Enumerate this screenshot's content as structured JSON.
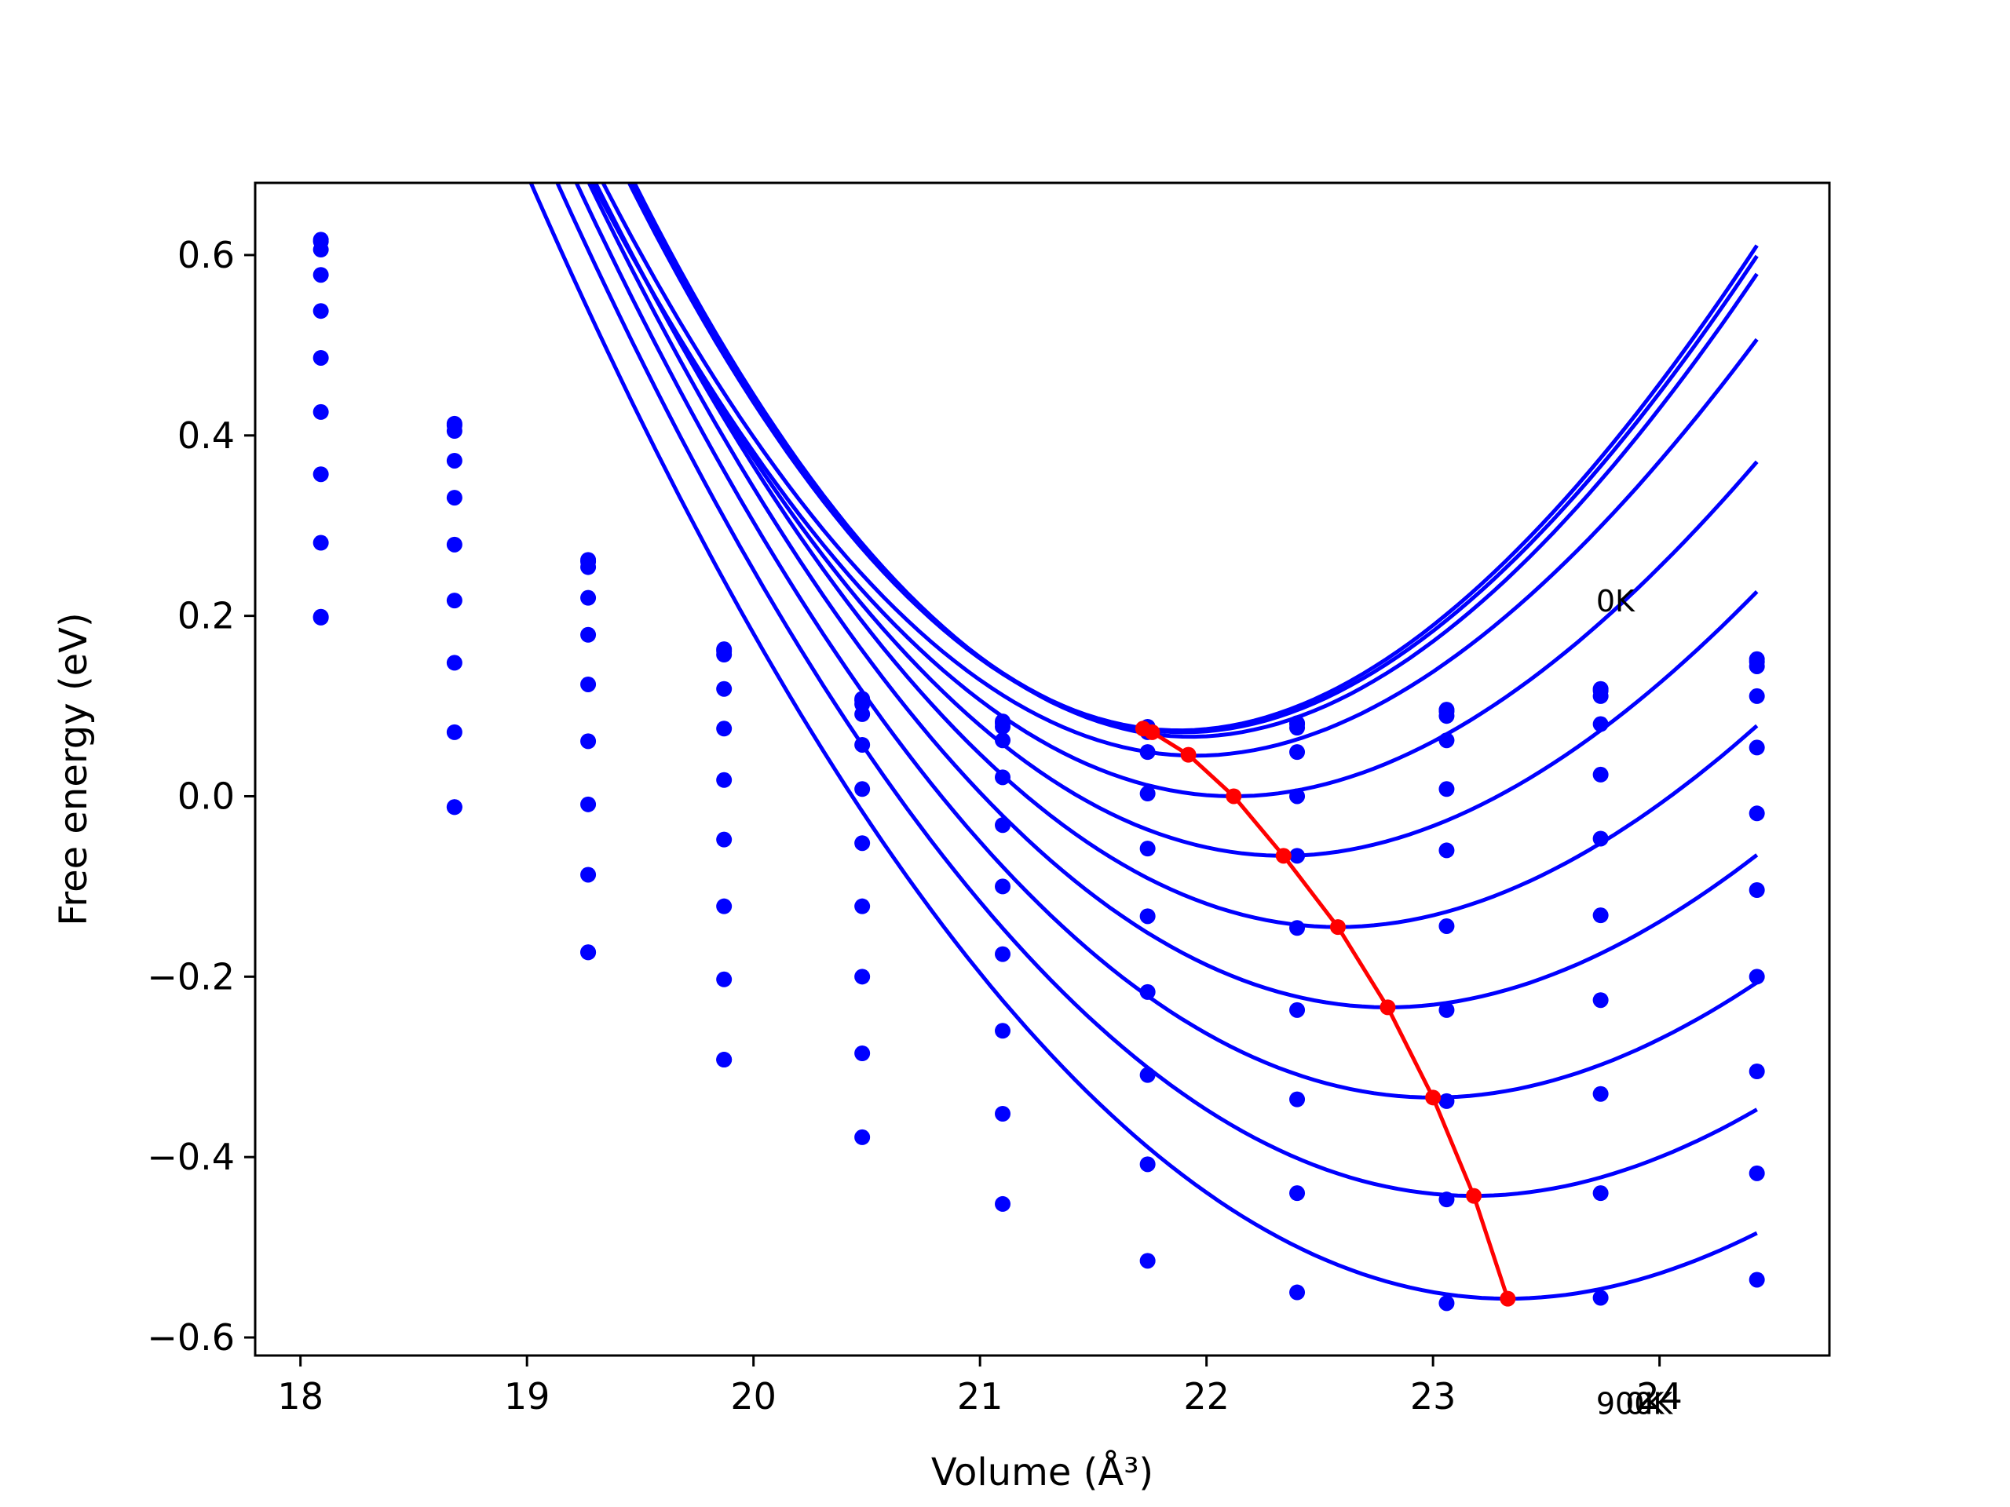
{
  "chart_data": {
    "type": "line",
    "title": "",
    "xlabel": "Volume (Å³)",
    "ylabel": "Free energy (eV)",
    "xlim": [
      17.8,
      24.75
    ],
    "ylim": [
      -0.62,
      0.68
    ],
    "xticks": [
      18,
      19,
      20,
      21,
      22,
      23,
      24
    ],
    "yticks": [
      -0.6,
      -0.4,
      -0.2,
      0.0,
      0.2,
      0.4,
      0.6
    ],
    "ytick_labels": [
      "−0.6",
      "−0.4",
      "−0.2",
      "0.0",
      "0.2",
      "0.4",
      "0.6"
    ],
    "grid": false,
    "annotations": [
      {
        "text": "0K",
        "x": 23.72,
        "y": 0.205
      },
      {
        "text": "900K",
        "x": 23.72,
        "y": -0.685
      },
      {
        "text": "0K",
        "x": 23.85,
        "y": -0.685
      }
    ],
    "volumes": [
      18.09,
      18.68,
      19.27,
      19.87,
      20.48,
      21.1,
      21.74,
      22.4,
      23.06,
      23.74,
      24.43
    ],
    "series": [
      {
        "color": "#0000ff",
        "values": [
          0.617,
          0.413,
          0.262,
          0.163,
          0.108,
          0.083,
          0.077,
          0.081,
          0.096,
          0.119,
          0.152
        ],
        "fit": {
          "a": 0.1029,
          "v0": 21.88,
          "e0": 0.073
        }
      },
      {
        "color": "#0000ff",
        "values": [
          0.615,
          0.411,
          0.26,
          0.161,
          0.106,
          0.081,
          0.075,
          0.08,
          0.094,
          0.117,
          0.149
        ],
        "fit": {
          "a": 0.1025,
          "v0": 21.9,
          "e0": 0.071
        }
      },
      {
        "color": "#0000ff",
        "values": [
          0.606,
          0.405,
          0.254,
          0.157,
          0.102,
          0.077,
          0.071,
          0.076,
          0.089,
          0.111,
          0.144
        ],
        "fit": {
          "a": 0.1018,
          "v0": 21.93,
          "e0": 0.066
        }
      },
      {
        "color": "#0000ff",
        "values": [
          0.578,
          0.372,
          0.22,
          0.119,
          0.091,
          0.062,
          0.049,
          0.049,
          0.062,
          0.08,
          0.111
        ],
        "fit": {
          "a": 0.0929,
          "v0": 21.95,
          "e0": 0.045
        }
      },
      {
        "color": "#0000ff",
        "values": [
          0.538,
          0.331,
          0.179,
          0.075,
          0.057,
          0.021,
          0.003,
          0.0,
          0.008,
          0.024,
          0.054
        ],
        "fit": {
          "a": 0.0849,
          "v0": 22.12,
          "e0": 0.0
        }
      },
      {
        "color": "#0000ff",
        "values": [
          0.486,
          0.279,
          0.124,
          0.018,
          0.008,
          -0.032,
          -0.058,
          -0.066,
          -0.06,
          -0.047,
          -0.019
        ],
        "fit": {
          "a": 0.0805,
          "v0": 22.34,
          "e0": -0.066
        }
      },
      {
        "color": "#0000ff",
        "values": [
          0.426,
          0.217,
          0.061,
          -0.048,
          -0.052,
          -0.1,
          -0.133,
          -0.146,
          -0.144,
          -0.132,
          -0.104
        ],
        "fit": {
          "a": 0.0768,
          "v0": 22.58,
          "e0": -0.145
        }
      },
      {
        "color": "#0000ff",
        "values": [
          0.357,
          0.148,
          -0.009,
          -0.122,
          -0.122,
          -0.175,
          -0.217,
          -0.237,
          -0.237,
          -0.226,
          -0.2
        ],
        "fit": {
          "a": 0.0735,
          "v0": 22.8,
          "e0": -0.234
        }
      },
      {
        "color": "#0000ff",
        "values": [
          0.281,
          0.071,
          -0.087,
          -0.203,
          -0.2,
          -0.26,
          -0.309,
          -0.336,
          -0.338,
          -0.33,
          -0.305
        ],
        "fit": {
          "a": 0.0709,
          "v0": 23.0,
          "e0": -0.334
        }
      },
      {
        "color": "#0000ff",
        "values": [
          0.199,
          -0.012,
          -0.173,
          -0.292,
          -0.285,
          -0.352,
          -0.408,
          -0.44,
          -0.447,
          -0.44,
          -0.418
        ],
        "fit": {
          "a": 0.0686,
          "v0": 23.18,
          "e0": -0.443
        }
      },
      {
        "color": "#0000ff",
        "values": [
          0.198,
          -0.012,
          -0.173,
          -0.292,
          -0.378,
          -0.452,
          -0.515,
          -0.55,
          -0.562,
          -0.556,
          -0.536
        ],
        "fit": {
          "a": 0.0665,
          "v0": 23.33,
          "e0": -0.557
        }
      }
    ],
    "minima_path": {
      "color": "#ff0000",
      "x": [
        21.72,
        21.76,
        21.92,
        22.12,
        22.34,
        22.58,
        22.8,
        23.0,
        23.18,
        23.33
      ],
      "y": [
        0.075,
        0.071,
        0.046,
        0.0,
        -0.066,
        -0.145,
        -0.234,
        -0.334,
        -0.443,
        -0.557
      ]
    }
  }
}
